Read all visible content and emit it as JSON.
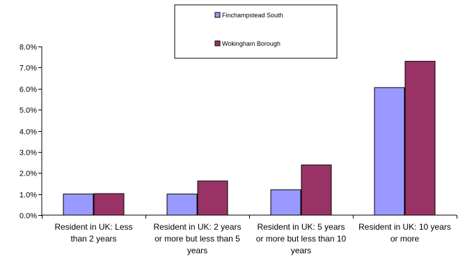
{
  "chart_data": {
    "type": "bar",
    "categories": [
      [
        "Resident in UK: Less",
        "than 2 years"
      ],
      [
        "Resident in UK: 2 years",
        "or more but less than 5",
        "years"
      ],
      [
        "Resident in UK: 5 years",
        "or more but less than 10",
        "years"
      ],
      [
        "Resident in UK: 10 years",
        "or more"
      ]
    ],
    "series": [
      {
        "name": "Finchampstead South",
        "color": "#9999FF",
        "values": [
          1.0,
          1.0,
          1.2,
          6.05
        ]
      },
      {
        "name": "Wokingham Borough",
        "color": "#993366",
        "values": [
          1.02,
          1.62,
          2.38,
          7.3
        ]
      }
    ],
    "yticks": [
      "0.0%",
      "1.0%",
      "2.0%",
      "3.0%",
      "4.0%",
      "5.0%",
      "6.0%",
      "7.0%",
      "8.0%"
    ],
    "ylim": [
      0,
      8
    ],
    "value_unit": "%",
    "title": "",
    "xlabel": "",
    "ylabel": "",
    "legend_position": "top-center",
    "grid": false
  }
}
